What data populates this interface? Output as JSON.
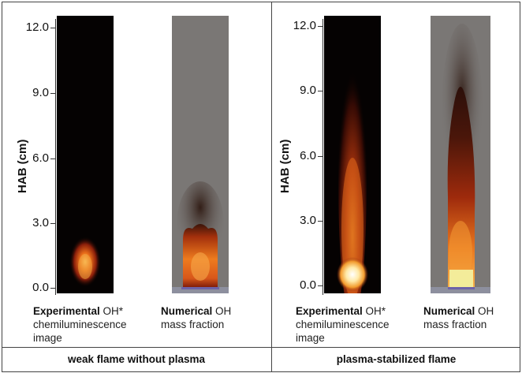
{
  "figure": {
    "y_axis_label": "HAB (cm)",
    "y_ticks": [
      "0.0",
      "3.0",
      "6.0",
      "9.0",
      "12.0"
    ],
    "panels": [
      {
        "condition": "weak flame without plasma",
        "experimental": {
          "bold": "Experimental",
          "rest": " OH*",
          "line2": "chemiluminescence",
          "line3": "image"
        },
        "numerical": {
          "bold": "Numerical",
          "rest": " OH",
          "line2": "mass fraction"
        }
      },
      {
        "condition": "plasma-stabilized flame",
        "experimental": {
          "bold": "Experimental",
          "rest": " OH*",
          "line2": "chemiluminescence",
          "line3": "image"
        },
        "numerical": {
          "bold": "Numerical",
          "rest": " OH",
          "line2": "mass fraction"
        }
      }
    ]
  },
  "colors": {
    "experimental_background": "#050202",
    "numerical_background": "#7a7775",
    "flame_core": "#fff3c8",
    "flame_mid": "#f08a1e",
    "flame_outer": "#7a1508"
  }
}
